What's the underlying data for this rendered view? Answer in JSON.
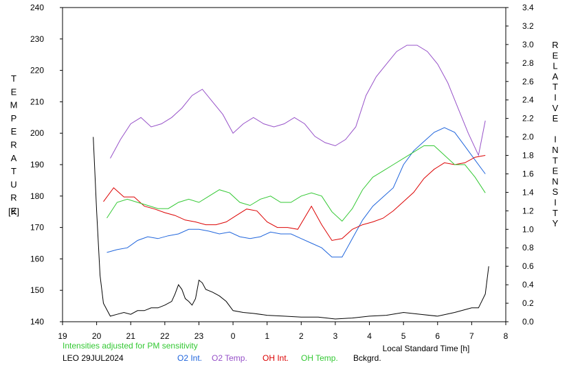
{
  "chart_data": {
    "type": "line",
    "title": "",
    "left_axis_label": "TEMPERATURE",
    "left_axis_unit": "[K]",
    "right_axis_label": "RELATIVE INTENSITY",
    "xlabel": "Local Standard Time [h]",
    "note": "Intensities adjusted for PM sensitivity",
    "station_date": "LEO 29JUL2024",
    "x_ticks": [
      "19",
      "20",
      "21",
      "22",
      "23",
      "0",
      "1",
      "2",
      "3",
      "4",
      "5",
      "6",
      "7",
      "8"
    ],
    "y_left_ticks": [
      "140",
      "150",
      "160",
      "170",
      "180",
      "190",
      "200",
      "210",
      "220",
      "230",
      "240"
    ],
    "y_right_ticks": [
      "0.0",
      "0.2",
      "0.4",
      "0.6",
      "0.8",
      "1.0",
      "1.2",
      "1.4",
      "1.6",
      "1.8",
      "2.0",
      "2.2",
      "2.4",
      "2.6",
      "2.8",
      "3.0",
      "3.2",
      "3.4"
    ],
    "xlim": [
      19,
      32
    ],
    "ylim_left": [
      140,
      240
    ],
    "ylim_right": [
      0,
      3.4
    ],
    "grid": false,
    "legend_placement": "bottom",
    "series": [
      {
        "name": "O2 Int.",
        "axis": "right",
        "color": "#1e64dc",
        "x": [
          20.3,
          20.6,
          20.9,
          21.2,
          21.5,
          21.8,
          22.1,
          22.4,
          22.7,
          23.0,
          23.3,
          23.6,
          23.9,
          24.2,
          24.5,
          24.8,
          25.1,
          25.4,
          25.7,
          26.0,
          26.3,
          26.6,
          26.9,
          27.2,
          27.5,
          27.8,
          28.1,
          28.4,
          28.7,
          29.0,
          29.3,
          29.6,
          29.9,
          30.2,
          30.5,
          30.8,
          31.1,
          31.4
        ],
        "y": [
          0.75,
          0.78,
          0.8,
          0.88,
          0.92,
          0.9,
          0.93,
          0.95,
          1.0,
          1.0,
          0.98,
          0.95,
          0.97,
          0.92,
          0.9,
          0.92,
          0.97,
          0.95,
          0.95,
          0.9,
          0.85,
          0.8,
          0.7,
          0.7,
          0.9,
          1.1,
          1.25,
          1.35,
          1.45,
          1.7,
          1.85,
          1.95,
          2.05,
          2.1,
          2.05,
          1.9,
          1.75,
          1.6
        ]
      },
      {
        "name": "O2 Temp.",
        "axis": "left",
        "color": "#9650c8",
        "x": [
          20.4,
          20.7,
          21.0,
          21.3,
          21.6,
          21.9,
          22.2,
          22.5,
          22.8,
          23.1,
          23.4,
          23.7,
          24.0,
          24.3,
          24.6,
          24.9,
          25.2,
          25.5,
          25.8,
          26.1,
          26.4,
          26.7,
          27.0,
          27.3,
          27.6,
          27.9,
          28.2,
          28.5,
          28.8,
          29.1,
          29.4,
          29.7,
          30.0,
          30.3,
          30.6,
          30.9,
          31.2,
          31.4
        ],
        "y": [
          192,
          198,
          203,
          205,
          202,
          203,
          205,
          208,
          212,
          214,
          210,
          206,
          200,
          203,
          205,
          203,
          202,
          203,
          205,
          203,
          199,
          197,
          196,
          198,
          202,
          212,
          218,
          222,
          226,
          228,
          228,
          226,
          222,
          216,
          208,
          200,
          193,
          204
        ]
      },
      {
        "name": "OH Int.",
        "axis": "right",
        "color": "#dc0000",
        "x": [
          20.2,
          20.5,
          20.8,
          21.1,
          21.4,
          21.7,
          22.0,
          22.3,
          22.6,
          22.9,
          23.2,
          23.5,
          23.8,
          24.1,
          24.4,
          24.7,
          25.0,
          25.3,
          25.6,
          25.9,
          26.3,
          26.6,
          26.9,
          27.2,
          27.5,
          27.8,
          28.1,
          28.4,
          28.7,
          29.0,
          29.3,
          29.6,
          29.9,
          30.2,
          30.5,
          30.8,
          31.1,
          31.4
        ],
        "y": [
          1.3,
          1.45,
          1.35,
          1.35,
          1.25,
          1.22,
          1.18,
          1.15,
          1.1,
          1.08,
          1.05,
          1.05,
          1.08,
          1.15,
          1.22,
          1.2,
          1.08,
          1.02,
          1.02,
          1.0,
          1.25,
          1.05,
          0.88,
          0.9,
          1.0,
          1.05,
          1.08,
          1.12,
          1.2,
          1.3,
          1.4,
          1.55,
          1.65,
          1.72,
          1.7,
          1.72,
          1.78,
          1.8
        ]
      },
      {
        "name": "OH Temp.",
        "axis": "left",
        "color": "#32c832",
        "x": [
          20.3,
          20.6,
          20.9,
          21.2,
          21.5,
          21.8,
          22.1,
          22.4,
          22.7,
          23.0,
          23.3,
          23.6,
          23.9,
          24.2,
          24.5,
          24.8,
          25.1,
          25.4,
          25.7,
          26.0,
          26.3,
          26.6,
          26.9,
          27.2,
          27.5,
          27.8,
          28.1,
          28.4,
          28.7,
          29.0,
          29.3,
          29.6,
          29.9,
          30.2,
          30.5,
          30.8,
          31.1,
          31.4
        ],
        "y": [
          173,
          178,
          179,
          178,
          177,
          176,
          176,
          178,
          179,
          178,
          180,
          182,
          181,
          178,
          177,
          179,
          180,
          178,
          178,
          180,
          181,
          180,
          175,
          172,
          176,
          182,
          186,
          188,
          190,
          192,
          194,
          196,
          196,
          193,
          190,
          190,
          186,
          181
        ]
      },
      {
        "name": "Bckgrd.",
        "axis": "right",
        "color": "#000000",
        "x": [
          19.9,
          20.0,
          20.1,
          20.2,
          20.4,
          20.6,
          20.8,
          21.0,
          21.2,
          21.4,
          21.6,
          21.8,
          22.0,
          22.2,
          22.3,
          22.4,
          22.5,
          22.6,
          22.7,
          22.8,
          22.9,
          23.0,
          23.1,
          23.2,
          23.4,
          23.6,
          23.8,
          24.0,
          24.3,
          24.6,
          25.0,
          25.5,
          26.0,
          26.5,
          27.0,
          27.5,
          28.0,
          28.5,
          29.0,
          29.5,
          30.0,
          30.5,
          31.0,
          31.2,
          31.4,
          31.5
        ],
        "y": [
          2.0,
          1.2,
          0.5,
          0.2,
          0.06,
          0.08,
          0.1,
          0.08,
          0.12,
          0.12,
          0.15,
          0.15,
          0.18,
          0.22,
          0.3,
          0.4,
          0.35,
          0.25,
          0.22,
          0.18,
          0.25,
          0.45,
          0.42,
          0.35,
          0.32,
          0.28,
          0.22,
          0.12,
          0.1,
          0.09,
          0.07,
          0.06,
          0.05,
          0.05,
          0.03,
          0.04,
          0.06,
          0.07,
          0.1,
          0.08,
          0.06,
          0.1,
          0.15,
          0.15,
          0.3,
          0.6
        ]
      }
    ]
  }
}
